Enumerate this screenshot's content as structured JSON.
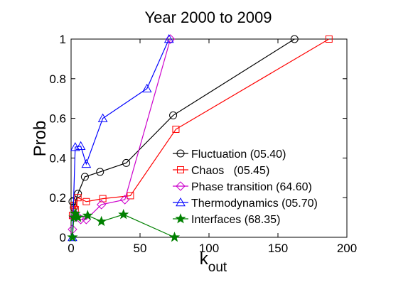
{
  "chart_data": {
    "type": "line",
    "title": "Year 2000 to 2009",
    "xlabel": "k",
    "xlabel_subscript": "out",
    "ylabel": "Prob",
    "xlim": [
      0,
      200
    ],
    "ylim": [
      0,
      1
    ],
    "xticks": [
      0,
      50,
      100,
      150,
      200
    ],
    "yticks": [
      0,
      0.2,
      0.4,
      0.6,
      0.8,
      1
    ],
    "ytick_labels": [
      "0",
      "0.2",
      "0.4",
      "0.6",
      "0.8",
      "1"
    ],
    "grid": false,
    "legend_position": "lower-right",
    "series": [
      {
        "name": "Fluctuation (05.40)",
        "color": "#000000",
        "marker": "circle",
        "x": [
          1,
          2,
          5,
          10,
          21,
          40,
          74,
          162
        ],
        "y": [
          0.18,
          0.15,
          0.22,
          0.305,
          0.33,
          0.375,
          0.615,
          1.0
        ]
      },
      {
        "name": "Chaos   (05.45)",
        "color": "#ff0000",
        "marker": "square",
        "x": [
          1,
          2,
          3,
          5,
          11,
          23,
          43,
          76,
          187
        ],
        "y": [
          0.11,
          0.16,
          0.14,
          0.2,
          0.18,
          0.195,
          0.21,
          0.545,
          1.0
        ]
      },
      {
        "name": "Phase transition (64.60)",
        "color": "#cc00cc",
        "marker": "diamond",
        "x": [
          1,
          2,
          4,
          7,
          11,
          22,
          39,
          72
        ],
        "y": [
          0.04,
          0.1,
          0.11,
          0.09,
          0.09,
          0.165,
          0.19,
          1.0
        ]
      },
      {
        "name": "Thermodynamics (05.70)",
        "color": "#0000ff",
        "marker": "triangle",
        "x": [
          1,
          3,
          7,
          11,
          23,
          55,
          71
        ],
        "y": [
          0.0,
          0.455,
          0.46,
          0.37,
          0.6,
          0.75,
          1.0
        ]
      },
      {
        "name": "Interfaces (68.35)",
        "color": "#008000",
        "marker": "star",
        "x": [
          1,
          2,
          3,
          5,
          12,
          22,
          38,
          75
        ],
        "y": [
          0.0,
          0.1,
          0.12,
          0.1,
          0.11,
          0.08,
          0.115,
          0.0
        ]
      }
    ]
  }
}
